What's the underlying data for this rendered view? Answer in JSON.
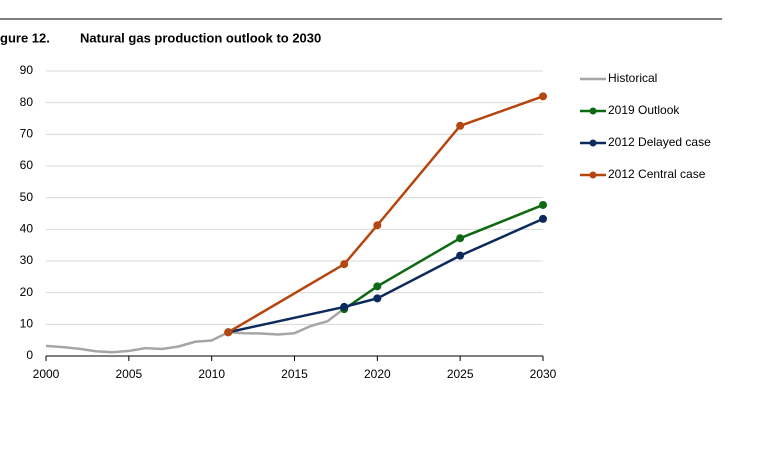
{
  "figure_label": "gure 12.",
  "chart_data": {
    "type": "line",
    "title": "Natural gas production outlook to 2030",
    "xlim": [
      2000,
      2030
    ],
    "xticks": [
      2000,
      2005,
      2010,
      2015,
      2020,
      2025,
      2030
    ],
    "ylim": [
      0,
      90
    ],
    "yticks": [
      0,
      10,
      20,
      30,
      40,
      50,
      60,
      70,
      80,
      90
    ],
    "grid": true,
    "legend": "right",
    "series": [
      {
        "name": "Historical",
        "color": "#a6a6a6",
        "markers": false,
        "x": [
          2000,
          2001,
          2002,
          2003,
          2004,
          2005,
          2006,
          2007,
          2008,
          2009,
          2010,
          2011,
          2012,
          2013,
          2014,
          2015,
          2016,
          2017,
          2018
        ],
        "values": [
          3.2,
          2.8,
          2.3,
          1.5,
          1.2,
          1.6,
          2.5,
          2.2,
          3.0,
          4.5,
          4.9,
          7.5,
          7.2,
          7.1,
          6.8,
          7.2,
          9.5,
          11,
          15
        ]
      },
      {
        "name": "2019 Outlook",
        "color": "#0e6a12",
        "markers": true,
        "x": [
          2018,
          2020,
          2025,
          2030
        ],
        "values": [
          14.8,
          22,
          37.2,
          47.7
        ]
      },
      {
        "name": "2012 Delayed case",
        "color": "#0c2a5b",
        "markers": true,
        "x": [
          2011,
          2018,
          2020,
          2025,
          2030
        ],
        "values": [
          7.5,
          15.5,
          18.2,
          31.7,
          43.3
        ]
      },
      {
        "name": "2012 Central case",
        "color": "#b5460f",
        "markers": true,
        "x": [
          2011,
          2018,
          2020,
          2025,
          2030
        ],
        "values": [
          7.5,
          29,
          41.3,
          72.7,
          82
        ]
      }
    ]
  }
}
